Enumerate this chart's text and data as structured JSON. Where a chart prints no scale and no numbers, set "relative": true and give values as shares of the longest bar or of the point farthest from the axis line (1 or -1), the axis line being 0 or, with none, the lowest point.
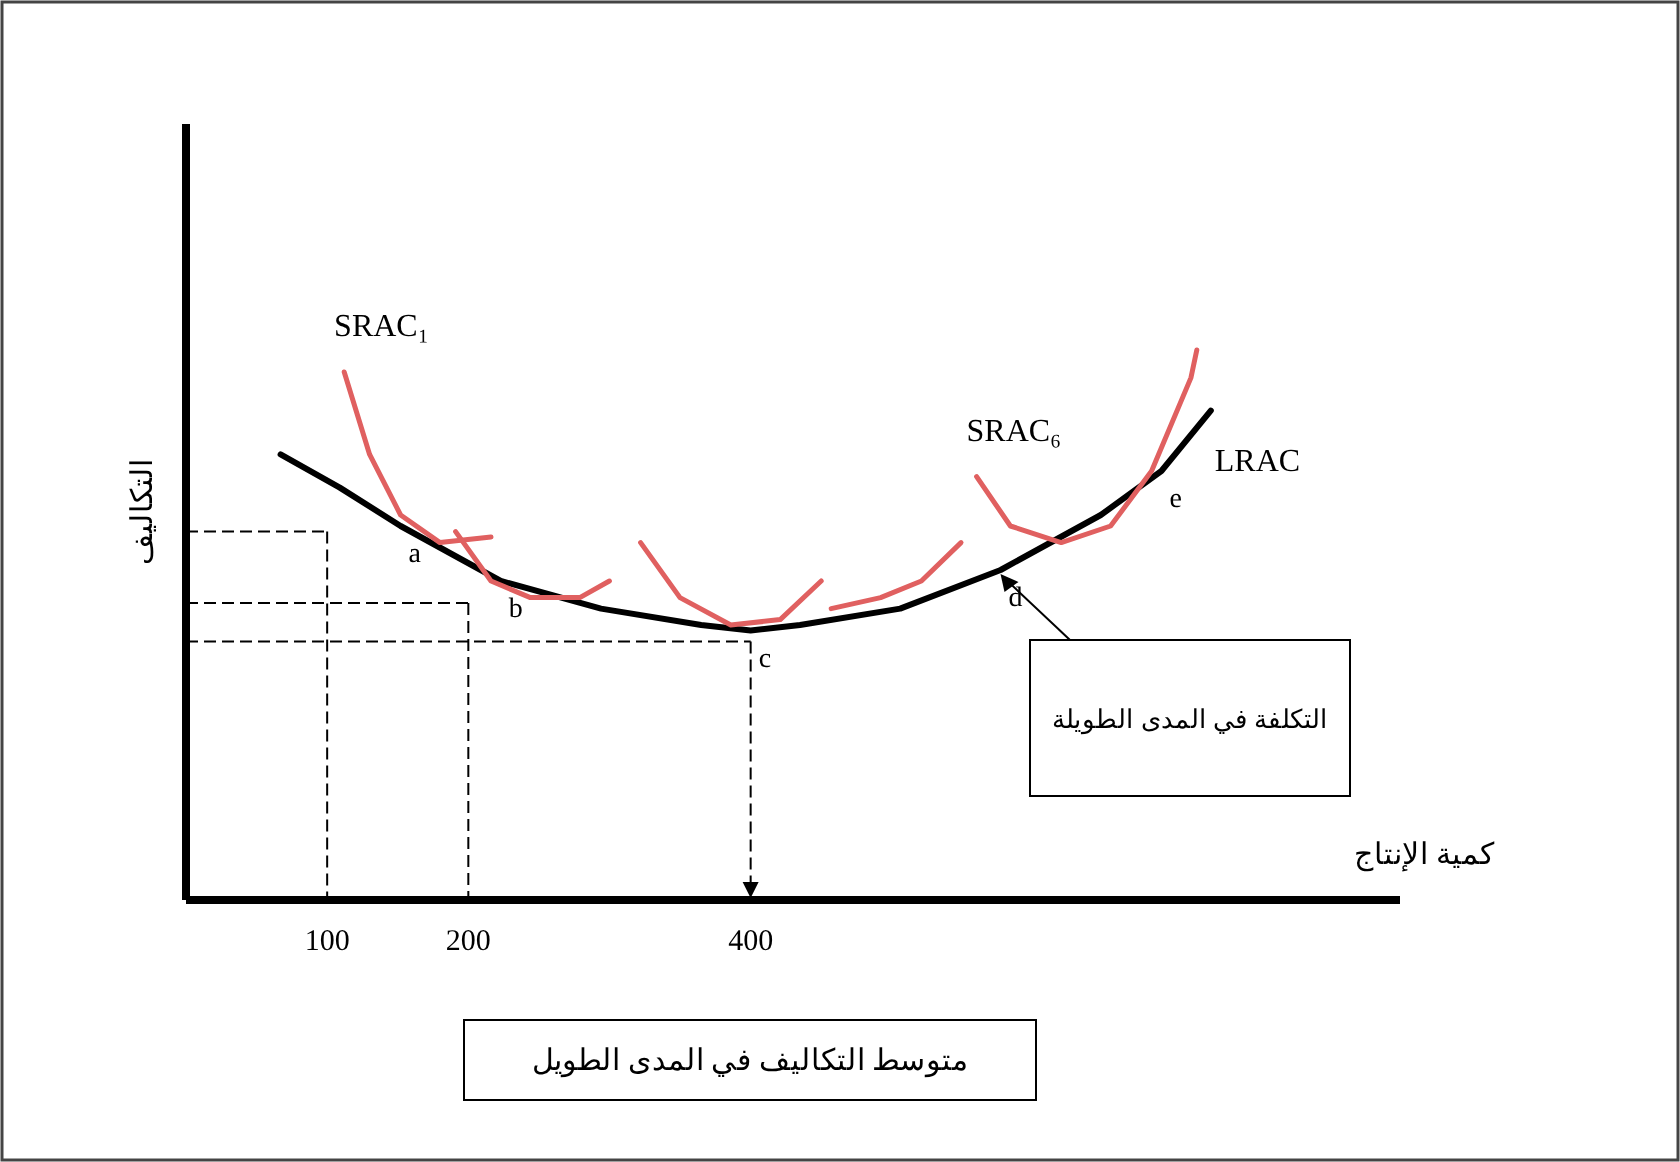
{
  "chart_data": {
    "type": "line",
    "relative": true,
    "title": "متوسط التكاليف في المدى الطويل",
    "xlabel": "كمية الإنتاج",
    "ylabel": "التكاليف",
    "xlim": [
      0,
      860
    ],
    "xticks": [
      100,
      200,
      400
    ],
    "grid": false,
    "marker": "none",
    "line_style": "solid",
    "series": [
      {
        "name": "LRAC",
        "color": "#000000",
        "x": [
          67,
          109,
          152,
          223,
          294,
          365,
          400,
          435,
          506,
          577,
          648,
          691,
          726
        ],
        "values": [
          0.81,
          0.75,
          0.68,
          0.58,
          0.53,
          0.5,
          0.49,
          0.5,
          0.53,
          0.6,
          0.7,
          0.78,
          0.89
        ]
      },
      {
        "name": "SRAC₁",
        "color": "#e06060",
        "x": [
          112,
          130,
          152,
          180,
          216
        ],
        "values": [
          0.96,
          0.81,
          0.7,
          0.65,
          0.66
        ]
      },
      {
        "color": "#e06060",
        "x": [
          191,
          216,
          244,
          279,
          300
        ],
        "values": [
          0.67,
          0.58,
          0.55,
          0.55,
          0.58
        ]
      },
      {
        "color": "#e06060",
        "x": [
          322,
          350,
          386,
          421,
          450
        ],
        "values": [
          0.65,
          0.55,
          0.5,
          0.51,
          0.58
        ]
      },
      {
        "color": "#e06060",
        "x": [
          457,
          492,
          521,
          549
        ],
        "values": [
          0.53,
          0.55,
          0.58,
          0.65
        ]
      },
      {
        "name": "SRAC₆",
        "color": "#e06060",
        "x": [
          560,
          584,
          620,
          655,
          684,
          712,
          716
        ],
        "values": [
          0.77,
          0.68,
          0.65,
          0.68,
          0.78,
          0.95,
          1.0
        ]
      }
    ],
    "ref_lines": [
      {
        "axis": "x",
        "value": 100,
        "line_style": "dashed"
      },
      {
        "axis": "x",
        "value": 200,
        "line_style": "dashed"
      },
      {
        "axis": "x",
        "value": 400,
        "line_style": "dashed"
      },
      {
        "axis": "y",
        "value": 0.67,
        "line_style": "dashed"
      },
      {
        "axis": "y",
        "value": 0.54,
        "line_style": "dashed"
      },
      {
        "axis": "y",
        "value": 0.47,
        "line_style": "dashed"
      }
    ],
    "annotations": [
      {
        "text": "a",
        "x": 152,
        "y": 0.68
      },
      {
        "text": "b",
        "x": 223,
        "y": 0.58
      },
      {
        "text": "c",
        "x": 400,
        "y": 0.49
      },
      {
        "text": "d",
        "x": 577,
        "y": 0.6
      },
      {
        "text": "e",
        "x": 691,
        "y": 0.78
      },
      "التكلفة في المدى الطويلة"
    ]
  }
}
